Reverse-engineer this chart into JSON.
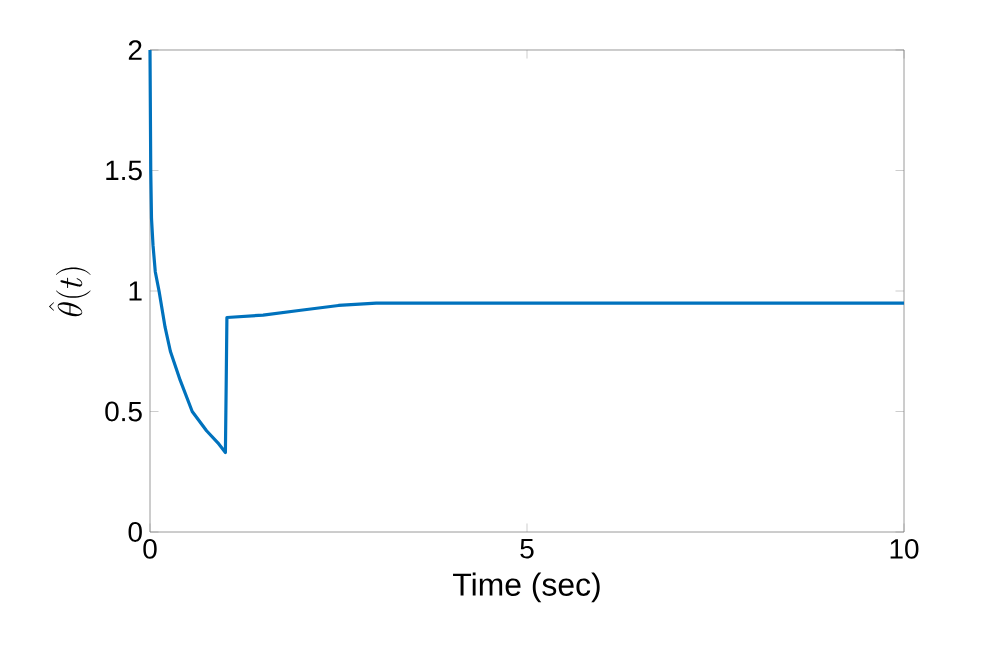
{
  "chart_data": {
    "type": "line",
    "xlabel": "Time (sec)",
    "ylabel": "\\hat{\\theta}(t)",
    "xlim": [
      0,
      10
    ],
    "ylim": [
      0,
      2
    ],
    "xticks": [
      0,
      5,
      10
    ],
    "yticks": [
      0,
      0.5,
      1,
      1.5,
      2
    ],
    "grid": false,
    "series": [
      {
        "color": "#0072bd",
        "x": [
          0,
          0.01,
          0.02,
          0.04,
          0.07,
          0.12,
          0.2,
          0.27,
          0.4,
          0.56,
          0.75,
          0.9,
          1.0,
          1.01,
          1.02,
          1.5,
          2.0,
          2.5,
          3.0,
          3.5,
          5,
          7.5,
          10
        ],
        "values": [
          2,
          1.5,
          1.3,
          1.19,
          1.08,
          1.0,
          0.85,
          0.75,
          0.63,
          0.5,
          0.42,
          0.37,
          0.33,
          0.6,
          0.89,
          0.9,
          0.92,
          0.94,
          0.95,
          0.95,
          0.95,
          0.95,
          0.95
        ]
      }
    ]
  }
}
